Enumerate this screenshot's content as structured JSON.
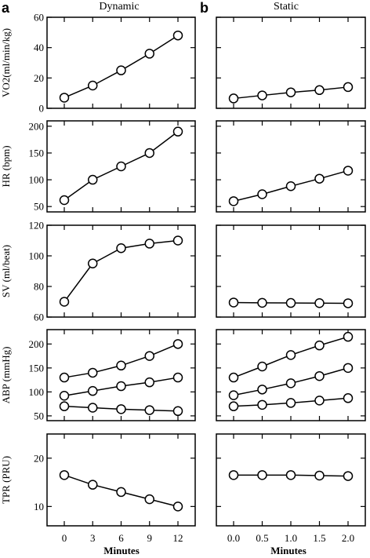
{
  "figure": {
    "panel_a": {
      "letter": "a",
      "title": "Dynamic"
    },
    "panel_b": {
      "letter": "b",
      "title": "Static"
    },
    "xlabel": "Minutes",
    "x_tick_labels_a": [
      "0",
      "3",
      "6",
      "9",
      "12"
    ],
    "x_tick_labels_b": [
      "0.0",
      "0.5",
      "1.0",
      "1.5",
      "2.0"
    ]
  },
  "chart_data": [
    {
      "type": "line",
      "panel": "a",
      "row": "vo2",
      "ylabel": "VO2(ml/min/kg)",
      "ylim": [
        0,
        60
      ],
      "yticks": [
        0,
        20,
        40,
        60
      ],
      "x": [
        0,
        3,
        6,
        9,
        12
      ],
      "series": [
        {
          "values": [
            7,
            15,
            25,
            36,
            48
          ]
        }
      ]
    },
    {
      "type": "line",
      "panel": "b",
      "row": "vo2",
      "ylabel": "VO2(ml/min/kg)",
      "ylim": [
        0,
        60
      ],
      "yticks": [
        0,
        20,
        40,
        60
      ],
      "x": [
        0.0,
        0.5,
        1.0,
        1.5,
        2.0
      ],
      "series": [
        {
          "values": [
            6.5,
            8.5,
            10.5,
            12,
            14
          ]
        }
      ]
    },
    {
      "type": "line",
      "panel": "a",
      "row": "hr",
      "ylabel": "HR (bpm)",
      "ylim": [
        40,
        210
      ],
      "yticks": [
        50,
        100,
        150,
        200
      ],
      "x": [
        0,
        3,
        6,
        9,
        12
      ],
      "series": [
        {
          "values": [
            62,
            100,
            125,
            150,
            190
          ]
        }
      ]
    },
    {
      "type": "line",
      "panel": "b",
      "row": "hr",
      "ylabel": "HR (bpm)",
      "ylim": [
        40,
        210
      ],
      "yticks": [
        50,
        100,
        150,
        200
      ],
      "x": [
        0.0,
        0.5,
        1.0,
        1.5,
        2.0
      ],
      "series": [
        {
          "values": [
            60,
            73,
            88,
            102,
            117
          ]
        }
      ]
    },
    {
      "type": "line",
      "panel": "a",
      "row": "sv",
      "ylabel": "SV (ml/beat)",
      "ylim": [
        60,
        120
      ],
      "yticks": [
        60,
        80,
        100,
        120
      ],
      "x": [
        0,
        3,
        6,
        9,
        12
      ],
      "series": [
        {
          "values": [
            70,
            95,
            105,
            108,
            110
          ]
        }
      ]
    },
    {
      "type": "line",
      "panel": "b",
      "row": "sv",
      "ylabel": "SV (ml/beat)",
      "ylim": [
        60,
        120
      ],
      "yticks": [
        60,
        80,
        100,
        120
      ],
      "x": [
        0.0,
        0.5,
        1.0,
        1.5,
        2.0
      ],
      "series": [
        {
          "values": [
            69.5,
            69.3,
            69.2,
            69.1,
            69.0
          ]
        }
      ]
    },
    {
      "type": "line",
      "panel": "a",
      "row": "abp",
      "ylabel": "ABP (mmHg)",
      "ylim": [
        40,
        230
      ],
      "yticks": [
        50,
        100,
        150,
        200
      ],
      "x": [
        0,
        3,
        6,
        9,
        12
      ],
      "series": [
        {
          "values": [
            130,
            140,
            155,
            175,
            200
          ]
        },
        {
          "values": [
            92,
            102,
            112,
            120,
            130
          ]
        },
        {
          "values": [
            70,
            67,
            64,
            62,
            60
          ]
        }
      ]
    },
    {
      "type": "line",
      "panel": "b",
      "row": "abp",
      "ylabel": "ABP (mmHg)",
      "ylim": [
        40,
        230
      ],
      "yticks": [
        50,
        100,
        150,
        200
      ],
      "x": [
        0.0,
        0.5,
        1.0,
        1.5,
        2.0
      ],
      "series": [
        {
          "values": [
            130,
            153,
            177,
            197,
            215
          ]
        },
        {
          "values": [
            93,
            105,
            118,
            133,
            150
          ]
        },
        {
          "values": [
            70,
            73,
            77,
            82,
            87
          ]
        }
      ]
    },
    {
      "type": "line",
      "panel": "a",
      "row": "tpr",
      "ylabel": "TPR (PRU)",
      "ylim": [
        6,
        25
      ],
      "yticks": [
        10,
        20
      ],
      "x": [
        0,
        3,
        6,
        9,
        12
      ],
      "series": [
        {
          "values": [
            16.5,
            14.5,
            13,
            11.5,
            10
          ]
        }
      ]
    },
    {
      "type": "line",
      "panel": "b",
      "row": "tpr",
      "ylabel": "TPR (PRU)",
      "ylim": [
        6,
        25
      ],
      "yticks": [
        10,
        20
      ],
      "x": [
        0.0,
        0.5,
        1.0,
        1.5,
        2.0
      ],
      "series": [
        {
          "values": [
            16.5,
            16.5,
            16.5,
            16.4,
            16.3
          ]
        }
      ]
    }
  ]
}
